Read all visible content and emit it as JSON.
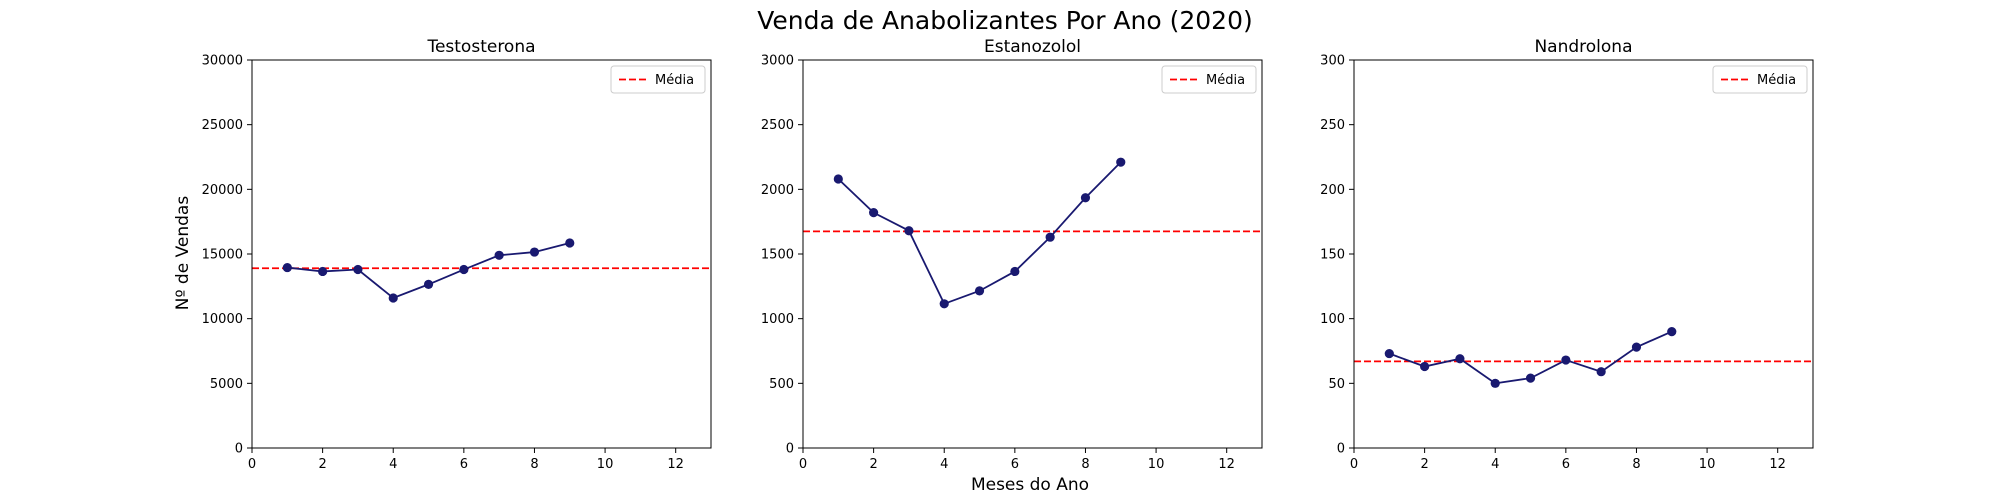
{
  "figure": {
    "title": "Venda de Anabolizantes Por Ano (2020)",
    "xlabel": "Meses do Ano",
    "ylabel": "Nº de Vendas"
  },
  "colors": {
    "series": "#191970",
    "mean": "#ff0000",
    "axes": "#000000"
  },
  "chart_data": [
    {
      "type": "line",
      "title": "Testosterona",
      "x": [
        1,
        2,
        3,
        4,
        5,
        6,
        7,
        8,
        9
      ],
      "series": [
        {
          "values": [
            13950,
            13650,
            13800,
            11600,
            12650,
            13800,
            14900,
            15150,
            15850
          ],
          "marker": "circle"
        }
      ],
      "mean_line": {
        "label": "Média",
        "value": 13900,
        "style": "dashed"
      },
      "xlim": [
        0,
        13
      ],
      "ylim": [
        0,
        30000
      ],
      "xticks": [
        0,
        2,
        4,
        6,
        8,
        10,
        12
      ],
      "yticks": [
        0,
        5000,
        10000,
        15000,
        20000,
        25000,
        30000
      ],
      "legend": "top-right",
      "grid": false
    },
    {
      "type": "line",
      "title": "Estanozolol",
      "x": [
        1,
        2,
        3,
        4,
        5,
        6,
        7,
        8,
        9
      ],
      "series": [
        {
          "values": [
            2080,
            1820,
            1680,
            1115,
            1215,
            1365,
            1630,
            1935,
            2210
          ],
          "marker": "circle"
        }
      ],
      "mean_line": {
        "label": "Média",
        "value": 1675,
        "style": "dashed"
      },
      "xlim": [
        0,
        13
      ],
      "ylim": [
        0,
        3000
      ],
      "xticks": [
        0,
        2,
        4,
        6,
        8,
        10,
        12
      ],
      "yticks": [
        0,
        500,
        1000,
        1500,
        2000,
        2500,
        3000
      ],
      "legend": "top-right",
      "grid": false
    },
    {
      "type": "line",
      "title": "Nandrolona",
      "x": [
        1,
        2,
        3,
        4,
        5,
        6,
        7,
        8,
        9
      ],
      "series": [
        {
          "values": [
            73,
            63,
            69,
            50,
            54,
            68,
            59,
            78,
            90
          ],
          "marker": "circle"
        }
      ],
      "mean_line": {
        "label": "Média",
        "value": 67,
        "style": "dashed"
      },
      "xlim": [
        0,
        13
      ],
      "ylim": [
        0,
        300
      ],
      "xticks": [
        0,
        2,
        4,
        6,
        8,
        10,
        12
      ],
      "yticks": [
        0,
        50,
        100,
        150,
        200,
        250,
        300
      ],
      "legend": "top-right",
      "grid": false
    }
  ]
}
